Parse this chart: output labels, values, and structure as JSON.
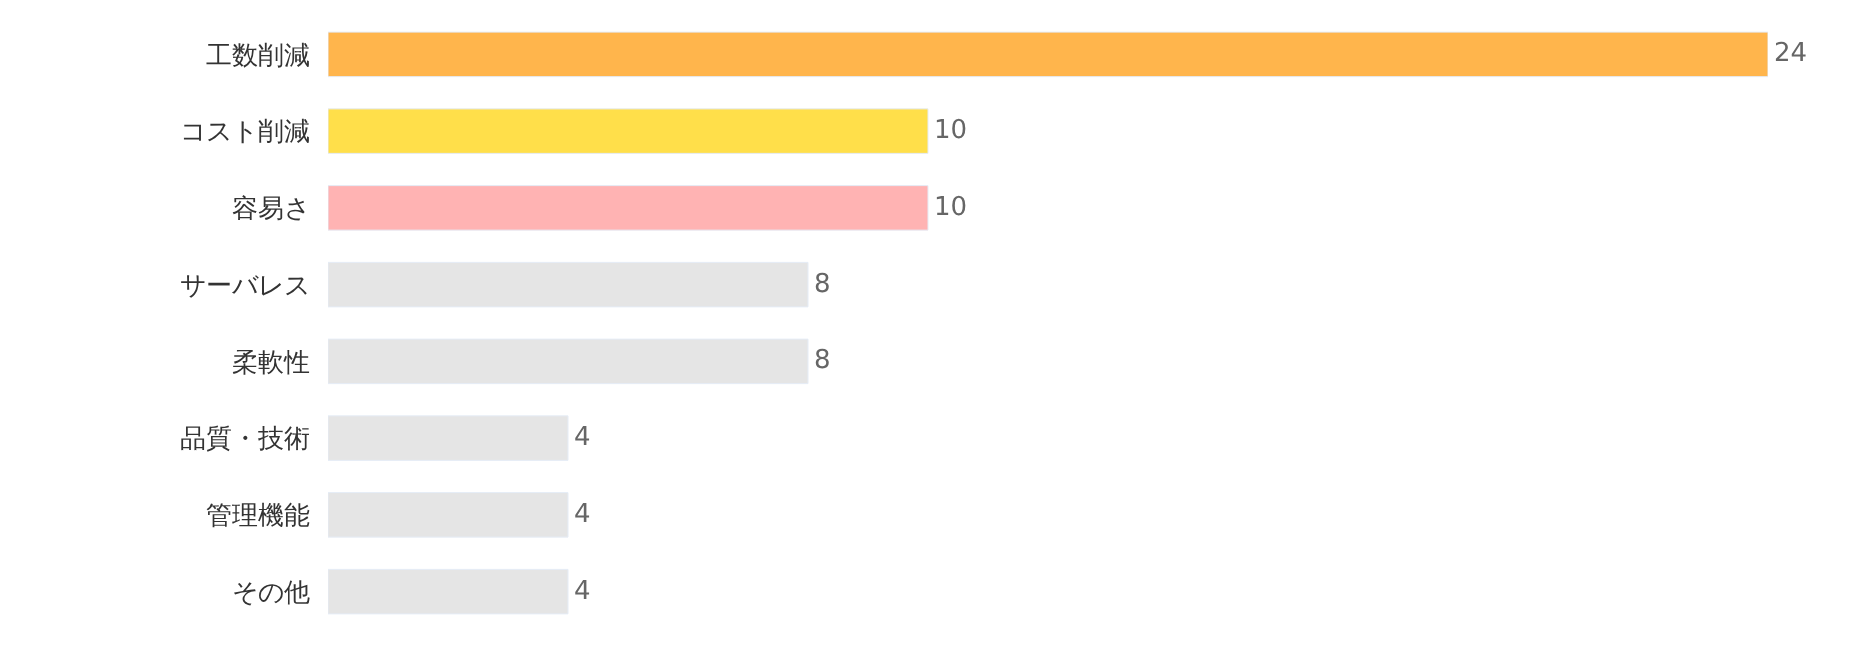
{
  "chart_data": {
    "type": "bar",
    "orientation": "horizontal",
    "categories": [
      "工数削減",
      "コスト削減",
      "容易さ",
      "サーバレス",
      "柔軟性",
      "品質・技術",
      "管理機能",
      "その他"
    ],
    "values": [
      24,
      10,
      10,
      8,
      8,
      4,
      4,
      4
    ],
    "colors": [
      "#ffb54c",
      "#ffdf4a",
      "#ffb3b3",
      "#e5e5e5",
      "#e5e5e5",
      "#e5e5e5",
      "#e5e5e5",
      "#e5e5e5"
    ],
    "xlim": [
      0,
      24
    ],
    "data_labels": true
  }
}
